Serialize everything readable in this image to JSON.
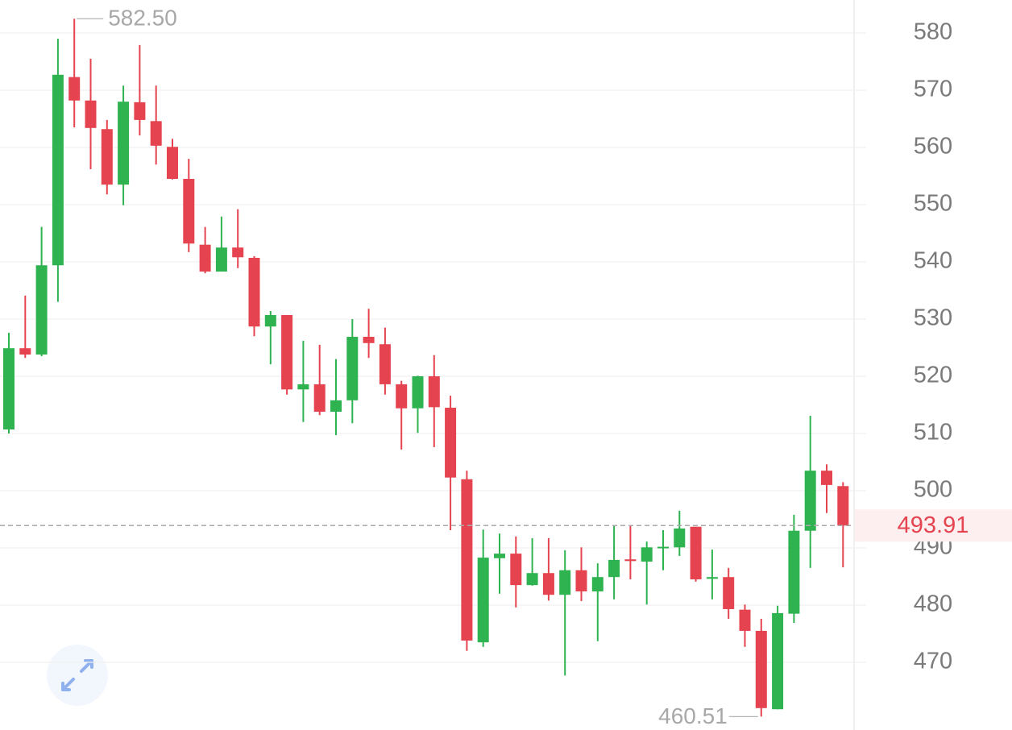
{
  "chart_data": {
    "type": "candlestick",
    "open": [
      510.7,
      524.9,
      523.8,
      539.4,
      572.3,
      568.2,
      563.2,
      553.5,
      567.9,
      564.6,
      560.1,
      554.5,
      543.0,
      538.3,
      542.5,
      540.7,
      528.7,
      530.7,
      517.7,
      518.6,
      513.8,
      515.8,
      526.9,
      525.6,
      518.6,
      514.4,
      520.0,
      514.5,
      502.0,
      473.5,
      488.2,
      489.0,
      483.5,
      485.6,
      481.8,
      486.1,
      482.4,
      484.9,
      488.0,
      487.6,
      490.1,
      490.1,
      493.7,
      484.6,
      484.9,
      479.2,
      475.5,
      461.8,
      478.5,
      493.0,
      503.5,
      500.8
    ],
    "high": [
      527.6,
      534.1,
      546.1,
      579.0,
      582.5,
      575.5,
      564.8,
      570.8,
      577.9,
      570.8,
      561.5,
      558.0,
      546.1,
      547.9,
      549.2,
      541.0,
      531.4,
      530.7,
      526.2,
      525.5,
      523.0,
      530.0,
      531.8,
      528.5,
      519.2,
      520.1,
      523.7,
      516.6,
      503.5,
      493.2,
      492.5,
      492.0,
      491.7,
      491.7,
      489.6,
      490.1,
      487.3,
      493.9,
      493.9,
      491.1,
      493.1,
      496.5,
      493.7,
      489.7,
      486.5,
      480.1,
      477.6,
      479.9,
      495.8,
      513.1,
      504.6,
      501.5
    ],
    "low": [
      510.0,
      523.2,
      523.5,
      533.0,
      563.5,
      556.2,
      551.8,
      549.9,
      562.1,
      557.0,
      554.4,
      541.7,
      538.0,
      538.3,
      538.9,
      527.0,
      522.1,
      516.8,
      512.0,
      513.2,
      509.7,
      511.8,
      523.2,
      516.8,
      507.2,
      510.1,
      507.6,
      493.1,
      472.0,
      472.7,
      482.0,
      479.6,
      483.4,
      480.8,
      467.7,
      480.7,
      473.7,
      481.0,
      484.5,
      480.1,
      486.1,
      488.6,
      484.1,
      481.0,
      477.6,
      472.7,
      460.51,
      461.8,
      476.9,
      486.5,
      496.1,
      486.6
    ],
    "close": [
      524.9,
      523.8,
      539.4,
      572.7,
      568.2,
      563.4,
      553.5,
      568.0,
      564.8,
      560.3,
      554.5,
      543.2,
      538.3,
      542.5,
      540.8,
      528.7,
      530.7,
      517.7,
      518.6,
      513.8,
      515.8,
      526.9,
      525.8,
      518.6,
      514.4,
      520.0,
      514.6,
      502.3,
      473.8,
      488.3,
      489.0,
      483.5,
      485.6,
      481.8,
      486.1,
      482.4,
      484.9,
      487.9,
      487.7,
      490.1,
      490.2,
      493.4,
      484.5,
      484.9,
      479.3,
      475.5,
      462.0,
      478.6,
      493.0,
      503.5,
      501.0,
      493.91
    ],
    "up_color": "#2fb350",
    "down_color": "#e5434f",
    "ylim": [
      458.17,
      585.77
    ],
    "yticks": [
      470,
      480,
      490,
      500,
      510,
      520,
      530,
      540,
      550,
      560,
      570,
      580
    ],
    "grid": true,
    "high_label": {
      "value": 582.5,
      "label": "582.50"
    },
    "low_label": 460.51,
    "last_price": 493.91
  }
}
